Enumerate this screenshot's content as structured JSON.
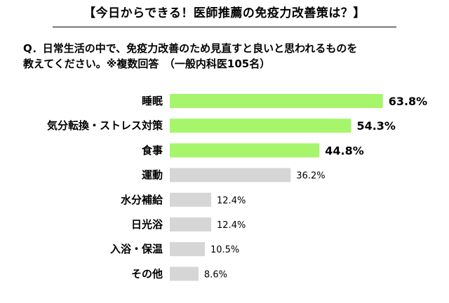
{
  "title": "【今日からできる！医師推薦の免疫力改善策は？】",
  "question": {
    "line1": "Q．日常生活の中で、免疫力改善のため見直すと良いと思われるものを",
    "line2": "教えてください。※複数回答　（一般内科医105名）"
  },
  "colors": {
    "highlight": "#a6f56a",
    "normal": "#d6d6d6"
  },
  "chart_data": {
    "type": "bar",
    "orientation": "horizontal",
    "categories": [
      "睡眠",
      "気分転換・ストレス対策",
      "食事",
      "運動",
      "水分補給",
      "日光浴",
      "入浴・保温",
      "その他"
    ],
    "values": [
      63.8,
      54.3,
      44.8,
      36.2,
      12.4,
      12.4,
      10.5,
      8.6
    ],
    "value_labels": [
      "63.8%",
      "54.3%",
      "44.8%",
      "36.2%",
      "12.4%",
      "12.4%",
      "10.5%",
      "8.6%"
    ],
    "highlighted": [
      true,
      true,
      true,
      false,
      false,
      false,
      false,
      false
    ],
    "xlim": [
      0,
      100
    ],
    "grid": false,
    "legend": "none"
  }
}
